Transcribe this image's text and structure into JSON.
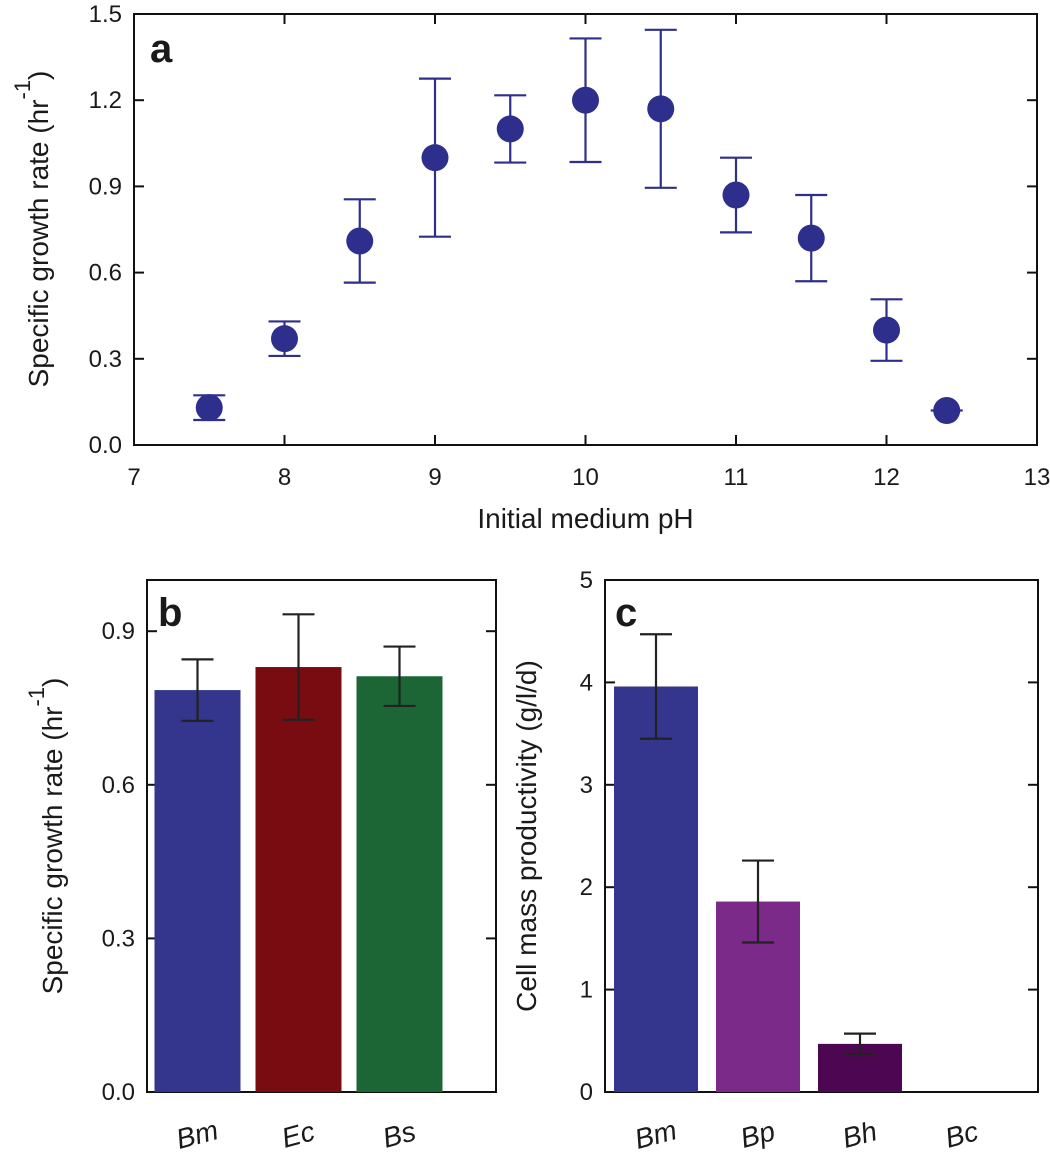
{
  "chart_data": [
    {
      "panel": "a",
      "type": "scatter",
      "title": "",
      "xlabel": "Initial medium pH",
      "ylabel": "Specific growth rate (hr",
      "ylabel_superscript": "-1",
      "ylabel_close": ")",
      "xlim": [
        7,
        13
      ],
      "ylim": [
        0.0,
        1.5
      ],
      "xticks": [
        "7",
        "8",
        "9",
        "10",
        "11",
        "12",
        "13"
      ],
      "yticks": [
        "0.0",
        "0.3",
        "0.6",
        "0.9",
        "1.2",
        "1.5"
      ],
      "color": "#2e2f8c",
      "x": [
        7.5,
        8.0,
        8.5,
        9.0,
        9.5,
        10.0,
        10.5,
        11.0,
        11.5,
        12.0,
        12.4
      ],
      "y": [
        0.13,
        0.37,
        0.71,
        1.0,
        1.1,
        1.2,
        1.17,
        0.87,
        0.72,
        0.4,
        0.12
      ],
      "err": [
        0.043,
        0.06,
        0.145,
        0.275,
        0.117,
        0.215,
        0.275,
        0.13,
        0.15,
        0.107,
        0.0
      ]
    },
    {
      "panel": "b",
      "type": "bar",
      "xlabel": "",
      "ylabel": "Specific growth rate (hr",
      "ylabel_superscript": "-1",
      "ylabel_close": ")",
      "ylim": [
        0.0,
        1.0
      ],
      "yticks": [
        "0.0",
        "0.3",
        "0.6",
        "0.9"
      ],
      "categories": [
        "Bm",
        "Ec",
        "Bs"
      ],
      "values": [
        0.785,
        0.83,
        0.812
      ],
      "errors": [
        0.06,
        0.103,
        0.058
      ],
      "colors": [
        "#33368c",
        "#780c10",
        "#1c6636"
      ]
    },
    {
      "panel": "c",
      "type": "bar",
      "xlabel": "",
      "ylabel": "Cell mass productivity (g/l/d)",
      "ylim": [
        0,
        5
      ],
      "yticks": [
        "0",
        "1",
        "2",
        "3",
        "4",
        "5"
      ],
      "categories": [
        "Bm",
        "Bp",
        "Bh",
        "Bc"
      ],
      "values": [
        3.96,
        1.86,
        0.47,
        0
      ],
      "errors": [
        0.51,
        0.4,
        0.1,
        0
      ],
      "colors": [
        "#33368c",
        "#7c2a8a",
        "#4d0752",
        "#000000"
      ]
    }
  ]
}
